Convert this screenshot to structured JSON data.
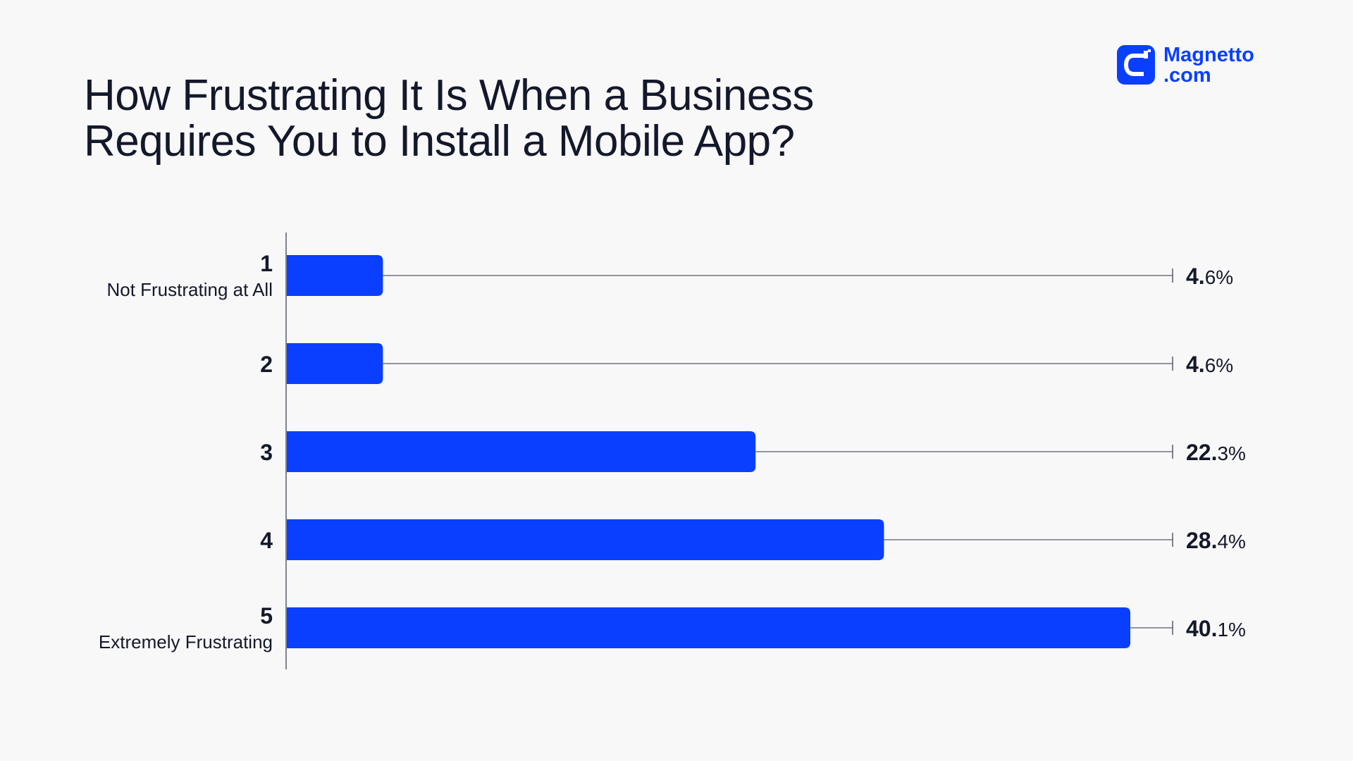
{
  "header": {
    "title_line1": "How Frustrating It Is When a Business",
    "title_line2": "Requires You to Install a Mobile App?"
  },
  "logo": {
    "line1": "Magnetto",
    "line2": ".com",
    "icon": "magnet-c-icon"
  },
  "colors": {
    "bar": "#0a3fff",
    "axis": "#555a66",
    "text": "#14182b",
    "background": "#f8f8f9"
  },
  "chart_data": {
    "type": "bar",
    "orientation": "horizontal",
    "title": "How Frustrating It Is When a Business Requires You to Install a Mobile App?",
    "categories": [
      {
        "label": "1",
        "sublabel": "Not Frustrating at All"
      },
      {
        "label": "2",
        "sublabel": ""
      },
      {
        "label": "3",
        "sublabel": ""
      },
      {
        "label": "4",
        "sublabel": ""
      },
      {
        "label": "5",
        "sublabel": "Extremely Frustrating"
      }
    ],
    "values": [
      4.6,
      4.6,
      22.3,
      28.4,
      40.1
    ],
    "value_labels": [
      {
        "int": "4.",
        "dec": "6%"
      },
      {
        "int": "4.",
        "dec": "6%"
      },
      {
        "int": "22.",
        "dec": "3%"
      },
      {
        "int": "28.",
        "dec": "4%"
      },
      {
        "int": "40.",
        "dec": "1%"
      }
    ],
    "unit": "%",
    "xlim": [
      0,
      40.1
    ],
    "grid": false,
    "legend": "none"
  }
}
